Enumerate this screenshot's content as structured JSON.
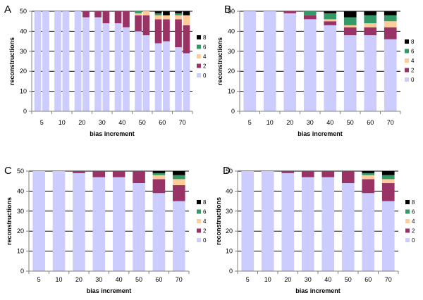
{
  "figure": {
    "legend_labels": [
      "8",
      "6",
      "4",
      "2",
      "0"
    ],
    "colors": {
      "0": "#ccccff",
      "2": "#993366",
      "4": "#ffcc99",
      "6": "#339966",
      "8": "#000000",
      "grid": "#000000",
      "axis": "#808080"
    }
  },
  "chart_data": [
    {
      "panel": "A",
      "type": "bar",
      "stacked": true,
      "grouped": true,
      "title": "",
      "xlabel": "bias increment",
      "ylabel": "reconstructions",
      "ylim": [
        0,
        50
      ],
      "yticks": [
        0,
        10,
        20,
        30,
        40,
        50
      ],
      "categories": [
        "5",
        "10",
        "20",
        "30",
        "40",
        "50",
        "60",
        "70"
      ],
      "bars_per_category": 2,
      "legend": "right",
      "series": [
        {
          "name": "0",
          "values": [
            [
              50,
              50
            ],
            [
              50,
              50
            ],
            [
              50,
              47
            ],
            [
              47,
              44
            ],
            [
              44,
              42
            ],
            [
              40,
              38
            ],
            [
              34,
              35
            ],
            [
              32,
              29
            ]
          ]
        },
        {
          "name": "2",
          "values": [
            [
              0,
              0
            ],
            [
              0,
              0
            ],
            [
              0,
              3
            ],
            [
              3,
              6
            ],
            [
              6,
              8
            ],
            [
              8,
              10
            ],
            [
              12,
              11
            ],
            [
              14,
              14
            ]
          ]
        },
        {
          "name": "4",
          "values": [
            [
              0,
              0
            ],
            [
              0,
              0
            ],
            [
              0,
              0
            ],
            [
              0,
              0
            ],
            [
              0,
              0
            ],
            [
              1,
              2
            ],
            [
              2,
              2
            ],
            [
              2,
              5
            ]
          ]
        },
        {
          "name": "6",
          "values": [
            [
              0,
              0
            ],
            [
              0,
              0
            ],
            [
              0,
              0
            ],
            [
              0,
              0
            ],
            [
              0,
              0
            ],
            [
              1,
              0
            ],
            [
              1,
              0
            ],
            [
              1,
              0
            ]
          ]
        },
        {
          "name": "8",
          "values": [
            [
              0,
              0
            ],
            [
              0,
              0
            ],
            [
              0,
              0
            ],
            [
              0,
              0
            ],
            [
              0,
              0
            ],
            [
              0,
              0
            ],
            [
              1,
              2
            ],
            [
              1,
              2
            ]
          ]
        }
      ]
    },
    {
      "panel": "B",
      "type": "bar",
      "stacked": true,
      "grouped": false,
      "title": "",
      "xlabel": "bias increment",
      "ylabel": "reconstructions",
      "ylim": [
        0,
        50
      ],
      "yticks": [
        0,
        10,
        20,
        30,
        40,
        50
      ],
      "categories": [
        "5",
        "10",
        "20",
        "30",
        "40",
        "50",
        "60",
        "70"
      ],
      "legend": "right",
      "series": [
        {
          "name": "0",
          "values": [
            50,
            50,
            49,
            46,
            43,
            38,
            38,
            36
          ]
        },
        {
          "name": "2",
          "values": [
            0,
            0,
            1,
            2,
            2,
            4,
            4,
            6
          ]
        },
        {
          "name": "4",
          "values": [
            0,
            0,
            0,
            0,
            1,
            1,
            2,
            3
          ]
        },
        {
          "name": "6",
          "values": [
            0,
            0,
            0,
            2,
            3,
            4,
            4,
            3
          ]
        },
        {
          "name": "8",
          "values": [
            0,
            0,
            0,
            0,
            1,
            3,
            2,
            2
          ]
        }
      ]
    },
    {
      "panel": "C",
      "type": "bar",
      "stacked": true,
      "grouped": false,
      "title": "",
      "xlabel": "bias increment",
      "ylabel": "reconstructions",
      "ylim": [
        0,
        50
      ],
      "yticks": [
        0,
        10,
        20,
        30,
        40,
        50
      ],
      "categories": [
        "5",
        "10",
        "20",
        "30",
        "40",
        "50",
        "60",
        "70"
      ],
      "legend": "right",
      "series": [
        {
          "name": "0",
          "values": [
            50,
            50,
            49,
            47,
            47,
            44,
            39,
            35
          ]
        },
        {
          "name": "2",
          "values": [
            0,
            0,
            1,
            3,
            3,
            6,
            7,
            8
          ]
        },
        {
          "name": "4",
          "values": [
            0,
            0,
            0,
            0,
            0,
            0,
            2,
            3
          ]
        },
        {
          "name": "6",
          "values": [
            0,
            0,
            0,
            0,
            0,
            0,
            1,
            2
          ]
        },
        {
          "name": "8",
          "values": [
            0,
            0,
            0,
            0,
            0,
            0,
            1,
            2
          ]
        }
      ]
    },
    {
      "panel": "D",
      "type": "bar",
      "stacked": true,
      "grouped": false,
      "title": "",
      "xlabel": "bias increment",
      "ylabel": "reconstructions",
      "ylim": [
        0,
        50
      ],
      "yticks": [
        0,
        10,
        20,
        30,
        40,
        50
      ],
      "categories": [
        "5",
        "10",
        "20",
        "30",
        "40",
        "50",
        "60",
        "70"
      ],
      "legend": "right",
      "series": [
        {
          "name": "0",
          "values": [
            50,
            50,
            49,
            47,
            47,
            44,
            39,
            35
          ]
        },
        {
          "name": "2",
          "values": [
            0,
            0,
            1,
            3,
            3,
            6,
            7,
            9
          ]
        },
        {
          "name": "4",
          "values": [
            0,
            0,
            0,
            0,
            0,
            0,
            2,
            2
          ]
        },
        {
          "name": "6",
          "values": [
            0,
            0,
            0,
            0,
            0,
            0,
            1,
            2
          ]
        },
        {
          "name": "8",
          "values": [
            0,
            0,
            0,
            0,
            0,
            0,
            1,
            2
          ]
        }
      ]
    }
  ]
}
